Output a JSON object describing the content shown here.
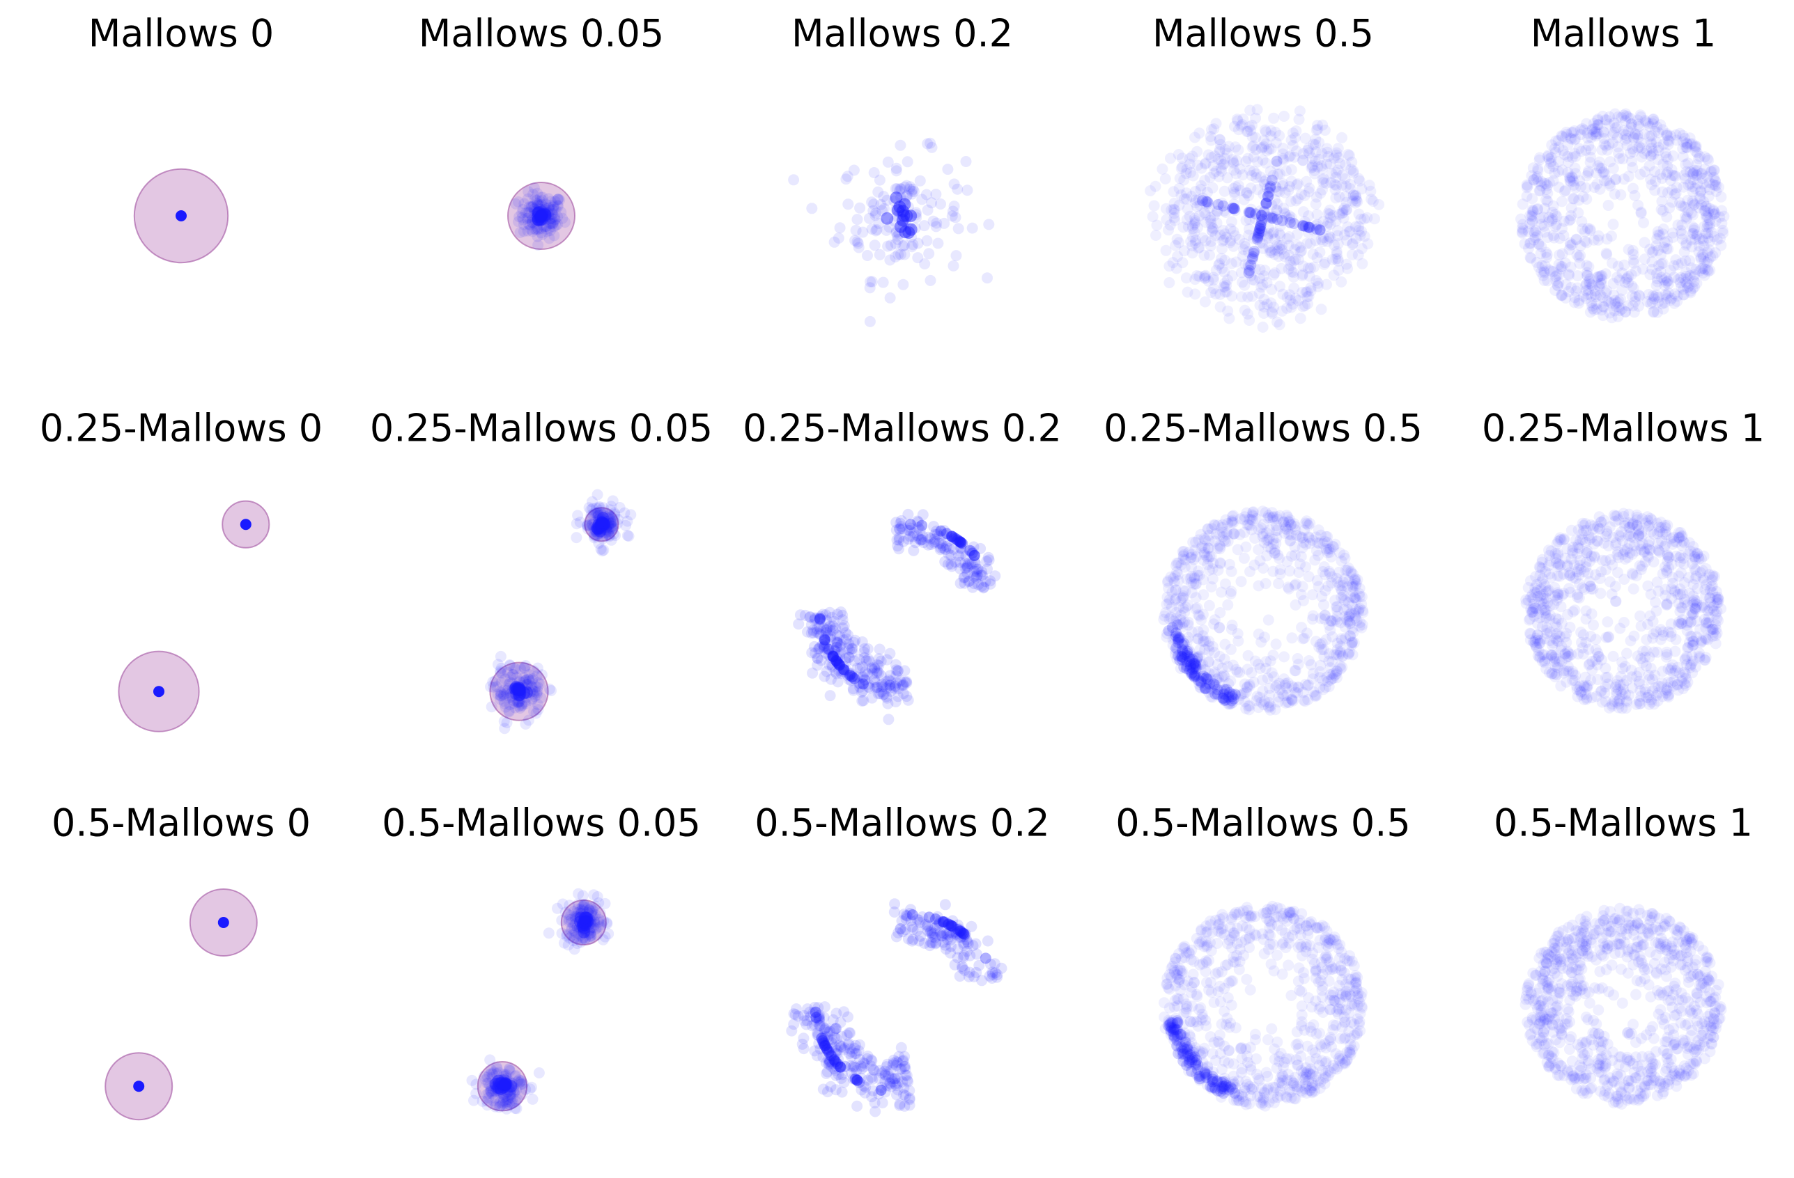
{
  "colors": {
    "point": "#1a1aff",
    "center_point": "#0000dd",
    "radius_fill": "#c890c8",
    "radius_stroke": "#a050a0",
    "title": "#000000"
  },
  "chart_data": {
    "type": "scatter",
    "layout": "3x5 grid",
    "axes": "off",
    "panels": [
      {
        "title": "Mallows 0",
        "alpha": 0,
        "phi": 0,
        "pattern": "point",
        "clusters": [
          {
            "x": 0,
            "y": 0,
            "r": 0.42
          }
        ]
      },
      {
        "title": "Mallows 0.05",
        "alpha": 0,
        "phi": 0.05,
        "pattern": "cluster",
        "clusters": [
          {
            "x": 0,
            "y": 0,
            "r": 0.3,
            "spread": 0.1
          }
        ]
      },
      {
        "title": "Mallows 0.2",
        "alpha": 0,
        "phi": 0.2,
        "pattern": "cluster",
        "clusters": [
          {
            "x": 0,
            "y": 0,
            "r": 0.0,
            "spread": 0.28
          }
        ]
      },
      {
        "title": "Mallows 0.5",
        "alpha": 0,
        "phi": 0.5,
        "pattern": "cloud",
        "radius": 0.95
      },
      {
        "title": "Mallows 1",
        "alpha": 0,
        "phi": 1,
        "pattern": "disk",
        "radius": 0.92
      },
      {
        "title": "0.25-Mallows 0",
        "alpha": 0.25,
        "phi": 0,
        "pattern": "point",
        "clusters": [
          {
            "x": 0.58,
            "y": 0.78,
            "r": 0.21
          },
          {
            "x": -0.2,
            "y": -0.72,
            "r": 0.36
          }
        ]
      },
      {
        "title": "0.25-Mallows 0.05",
        "alpha": 0.25,
        "phi": 0.05,
        "pattern": "cluster",
        "clusters": [
          {
            "x": 0.54,
            "y": 0.78,
            "r": 0.15,
            "spread": 0.09
          },
          {
            "x": -0.2,
            "y": -0.72,
            "r": 0.26,
            "spread": 0.11
          }
        ]
      },
      {
        "title": "0.25-Mallows 0.2",
        "alpha": 0.25,
        "phi": 0.2,
        "pattern": "arcs",
        "radius": 0.78
      },
      {
        "title": "0.25-Mallows 0.5",
        "alpha": 0.25,
        "phi": 0.5,
        "pattern": "ring",
        "radius": 0.9
      },
      {
        "title": "0.25-Mallows 1",
        "alpha": 0.25,
        "phi": 1,
        "pattern": "disk",
        "radius": 0.88
      },
      {
        "title": "0.5-Mallows 0",
        "alpha": 0.5,
        "phi": 0,
        "pattern": "point",
        "clusters": [
          {
            "x": 0.38,
            "y": 0.75,
            "r": 0.3
          },
          {
            "x": -0.38,
            "y": -0.72,
            "r": 0.3
          }
        ]
      },
      {
        "title": "0.5-Mallows 0.05",
        "alpha": 0.5,
        "phi": 0.05,
        "pattern": "cluster",
        "clusters": [
          {
            "x": 0.38,
            "y": 0.75,
            "r": 0.2,
            "spread": 0.1
          },
          {
            "x": -0.35,
            "y": -0.72,
            "r": 0.22,
            "spread": 0.1
          }
        ]
      },
      {
        "title": "0.5-Mallows 0.2",
        "alpha": 0.5,
        "phi": 0.2,
        "pattern": "arcs",
        "radius": 0.82
      },
      {
        "title": "0.5-Mallows 0.5",
        "alpha": 0.5,
        "phi": 0.5,
        "pattern": "ring",
        "radius": 0.9
      },
      {
        "title": "0.5-Mallows 1",
        "alpha": 0.5,
        "phi": 1,
        "pattern": "disk",
        "radius": 0.88
      }
    ]
  }
}
